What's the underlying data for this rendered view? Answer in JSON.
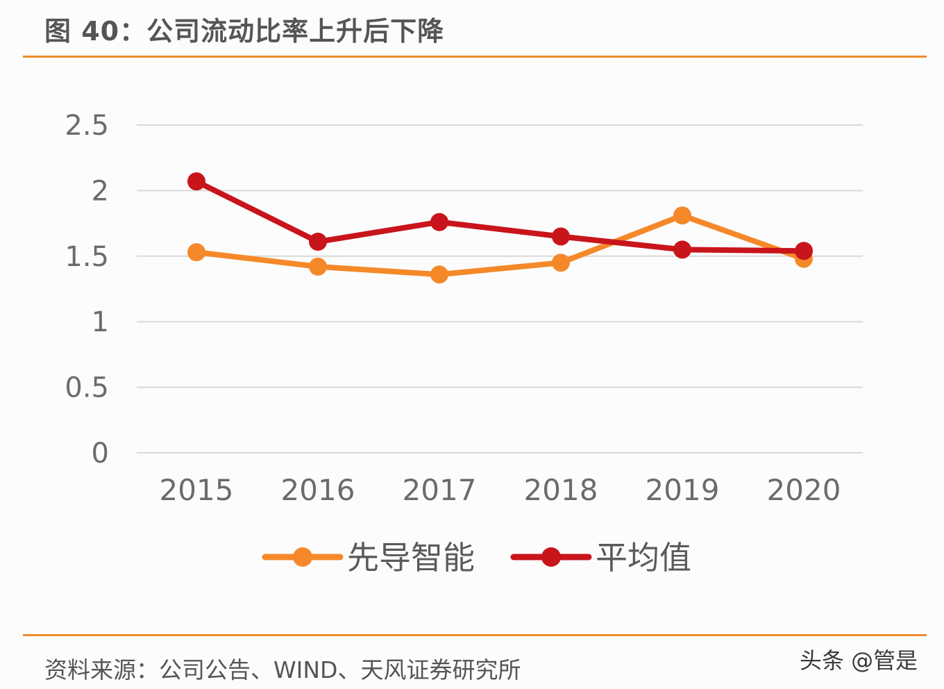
{
  "title": "图 40：公司流动比率上升后下降",
  "source": "资料来源：公司公告、WIND、天风证券研究所",
  "watermark": "头条 @管是",
  "colors": {
    "accent_rule": "#ee8a2b",
    "series_1": "#f5892a",
    "series_2": "#c8141b",
    "grid": "#d9d9d9",
    "text": "#6b6b6b"
  },
  "chart_data": {
    "type": "line",
    "title": "图 40：公司流动比率上升后下降",
    "xlabel": "",
    "ylabel": "",
    "x": [
      "2015",
      "2016",
      "2017",
      "2018",
      "2019",
      "2020"
    ],
    "ylim": [
      0,
      2.5
    ],
    "yticks": [
      "0",
      "0.5",
      "1",
      "1.5",
      "2",
      "2.5"
    ],
    "yticks_values": [
      0,
      0.5,
      1,
      1.5,
      2,
      2.5
    ],
    "grid": true,
    "legend_position": "bottom",
    "series": [
      {
        "name": "先导智能",
        "values": [
          1.53,
          1.42,
          1.36,
          1.45,
          1.81,
          1.48
        ]
      },
      {
        "name": "平均值",
        "values": [
          2.07,
          1.61,
          1.76,
          1.65,
          1.55,
          1.54
        ]
      }
    ]
  }
}
